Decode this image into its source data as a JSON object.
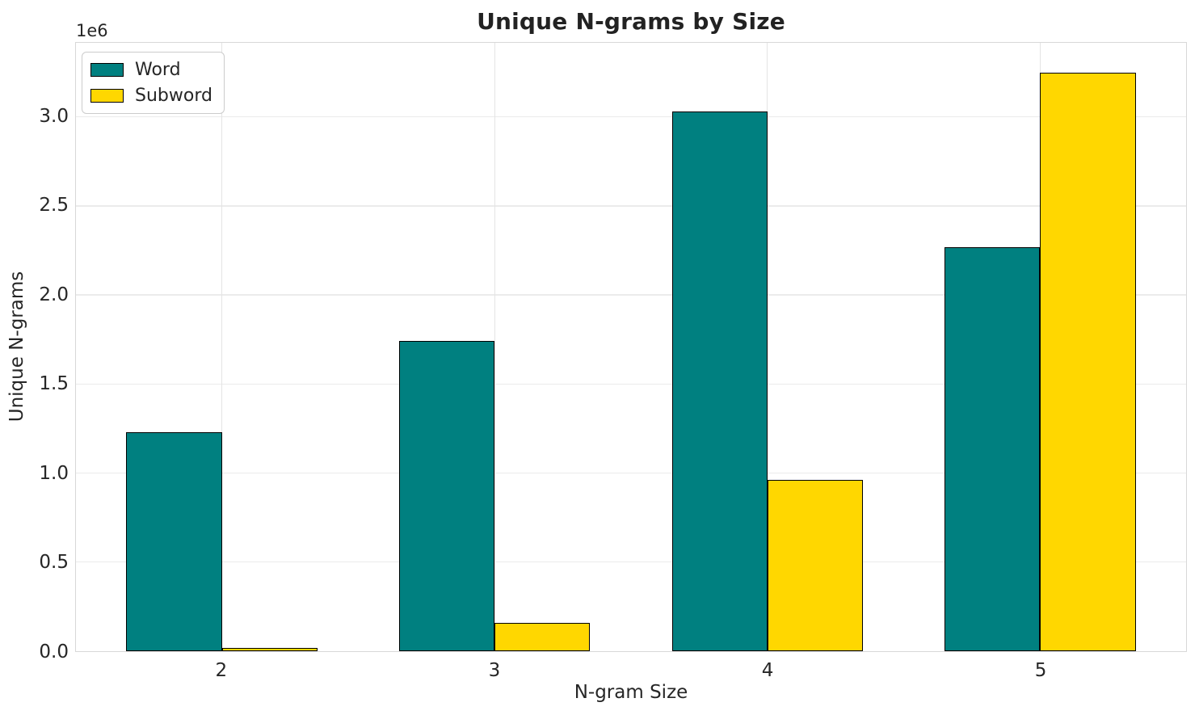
{
  "chart_data": {
    "type": "bar",
    "title": "Unique N-grams by Size",
    "xlabel": "N-gram Size",
    "ylabel": "Unique N-grams",
    "y_offset_label": "1e6",
    "categories": [
      "2",
      "3",
      "4",
      "5"
    ],
    "category_positions": [
      2,
      3,
      4,
      5
    ],
    "series": [
      {
        "name": "Word",
        "color": "#008080",
        "values": [
          1230000,
          1740000,
          3030000,
          2270000
        ]
      },
      {
        "name": "Subword",
        "color": "#ffd700",
        "values": [
          20000,
          160000,
          960000,
          3250000
        ]
      }
    ],
    "bar_width": 0.35,
    "bar_edge_color": "#000000",
    "xlim": [
      1.465,
      5.535
    ],
    "ylim": [
      0,
      3416000
    ],
    "yticks": [
      0,
      500000,
      1000000,
      1500000,
      2000000,
      2500000,
      3000000
    ],
    "ytick_labels": [
      "0.0",
      "0.5",
      "1.0",
      "1.5",
      "2.0",
      "2.5",
      "3.0"
    ],
    "grid": true,
    "legend_position": "upper left",
    "colors": {
      "background": "#ffffff",
      "grid": "#ebebeb",
      "spine": "#d8d8d8",
      "text": "#262626",
      "title": "#222222"
    }
  }
}
